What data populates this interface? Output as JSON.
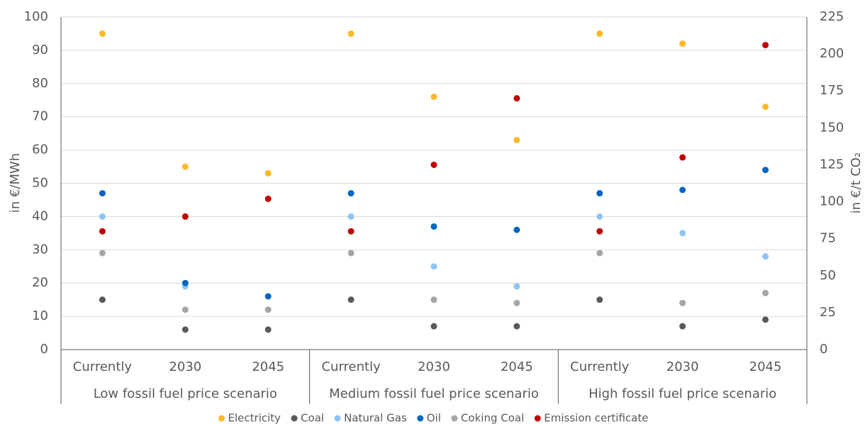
{
  "chart_data": {
    "type": "scatter",
    "categories": [
      "Currently",
      "2030",
      "2045",
      "Currently",
      "2030",
      "2045",
      "Currently",
      "2030",
      "2045"
    ],
    "groups": [
      "Low fossil fuel price scenario",
      "Medium fossil fuel price scenario",
      "High fossil fuel price scenario"
    ],
    "y_label": "in €/MWh",
    "y2_label": "in €/t CO₂",
    "ylim": [
      0,
      100
    ],
    "yticks": [
      0,
      10,
      20,
      30,
      40,
      50,
      60,
      70,
      80,
      90,
      100
    ],
    "y2lim": [
      0,
      225
    ],
    "y2ticks": [
      0,
      25,
      50,
      75,
      100,
      125,
      150,
      175,
      200,
      225
    ],
    "grid": true,
    "legend": "bottom",
    "series": [
      {
        "name": "Electricity",
        "color": "#fbb827",
        "values": [
          95,
          55,
          53,
          95,
          76,
          63,
          95,
          92,
          73
        ]
      },
      {
        "name": "Coal",
        "color": "#595959",
        "values": [
          15,
          6,
          6,
          15,
          7,
          7,
          15,
          7,
          9
        ]
      },
      {
        "name": "Natural Gas",
        "color": "#8ec5f2",
        "values": [
          40,
          19,
          12,
          40,
          25,
          19,
          40,
          35,
          28
        ]
      },
      {
        "name": "Oil",
        "color": "#0565c0",
        "values": [
          47,
          20,
          16,
          47,
          37,
          36,
          47,
          48,
          54
        ]
      },
      {
        "name": "Coking Coal",
        "color": "#a5a5a5",
        "values": [
          29,
          12,
          12,
          29,
          15,
          14,
          29,
          14,
          17
        ]
      },
      {
        "name": "Emission certificate",
        "color": "#c00000",
        "axis": "y2",
        "values": [
          80,
          90,
          102,
          80,
          125,
          170,
          80,
          130,
          206
        ]
      }
    ]
  }
}
